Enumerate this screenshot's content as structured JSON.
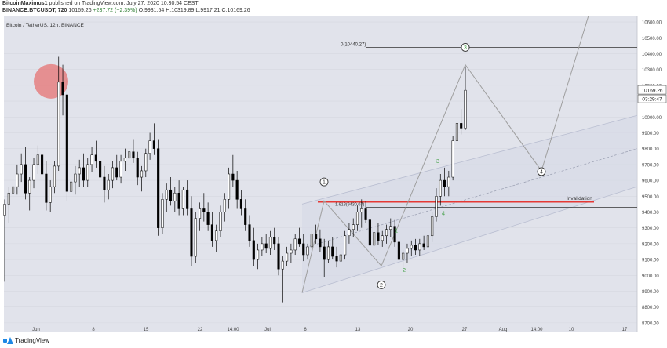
{
  "header": {
    "author": "BitcoinMaximus1",
    "published": "published on TradingView.com, July 27, 2020 10:30:54 CEST",
    "symbol": "BINANCE:BTCUSDT, 720",
    "price": "10169.26",
    "change": "+237.72 (+2.39%)",
    "ohlc": "O:9931.54 H:10319.89 L:9917.21 C:10169.26"
  },
  "footer": {
    "brand": "TradingView"
  },
  "chart_data": {
    "type": "candlestick",
    "title": "Bitcoin / TetherUS, 12h, BINANCE",
    "ylim": [
      8640,
      10640
    ],
    "y_ticks": [
      "10600.00",
      "10500.00",
      "10400.00",
      "10300.00",
      "10200.00",
      "10100.00",
      "10000.00",
      "9900.00",
      "9800.00",
      "9700.00",
      "9600.00",
      "9500.00",
      "9400.00",
      "9300.00",
      "9200.00",
      "9100.00",
      "9000.00",
      "8900.00",
      "8800.00",
      "8700.00"
    ],
    "x_ticks": [
      "Jun",
      "8",
      "15",
      "22",
      "14:00",
      "Jul",
      "6",
      "13",
      "20",
      "27",
      "Aug",
      "14:00",
      "10",
      "17"
    ],
    "price_badge": "10169.26",
    "countdown_badge": "03:29:47",
    "candles": [
      [
        9380,
        9480,
        8960,
        9450
      ],
      [
        9450,
        9560,
        9330,
        9520
      ],
      [
        9520,
        9620,
        9430,
        9560
      ],
      [
        9560,
        9700,
        9510,
        9640
      ],
      [
        9640,
        9770,
        9590,
        9700
      ],
      [
        9700,
        9810,
        9480,
        9520
      ],
      [
        9520,
        9620,
        9410,
        9600
      ],
      [
        9600,
        9740,
        9550,
        9700
      ],
      [
        9700,
        9820,
        9640,
        9760
      ],
      [
        9760,
        9880,
        9590,
        9640
      ],
      [
        9640,
        9720,
        9410,
        9460
      ],
      [
        9460,
        9600,
        9400,
        9560
      ],
      [
        9560,
        9720,
        9520,
        9690
      ],
      [
        9690,
        10380,
        9660,
        10220
      ],
      [
        10220,
        10330,
        10010,
        10140
      ],
      [
        10140,
        10240,
        9470,
        9530
      ],
      [
        9530,
        9640,
        9360,
        9590
      ],
      [
        9590,
        9690,
        9510,
        9640
      ],
      [
        9640,
        9730,
        9560,
        9680
      ],
      [
        9680,
        9770,
        9560,
        9600
      ],
      [
        9600,
        9740,
        9560,
        9700
      ],
      [
        9700,
        9810,
        9650,
        9760
      ],
      [
        9760,
        9850,
        9680,
        9720
      ],
      [
        9720,
        9800,
        9580,
        9620
      ],
      [
        9620,
        9690,
        9460,
        9540
      ],
      [
        9540,
        9640,
        9480,
        9600
      ],
      [
        9600,
        9720,
        9550,
        9680
      ],
      [
        9680,
        9760,
        9600,
        9620
      ],
      [
        9620,
        9760,
        9580,
        9720
      ],
      [
        9720,
        9800,
        9660,
        9740
      ],
      [
        9740,
        9830,
        9690,
        9780
      ],
      [
        9780,
        9860,
        9710,
        9740
      ],
      [
        9740,
        9780,
        9570,
        9620
      ],
      [
        9620,
        9690,
        9530,
        9660
      ],
      [
        9660,
        9800,
        9620,
        9770
      ],
      [
        9770,
        9900,
        9730,
        9850
      ],
      [
        9850,
        9960,
        9760,
        9800
      ],
      [
        9800,
        9860,
        9250,
        9300
      ],
      [
        9300,
        9520,
        9260,
        9480
      ],
      [
        9480,
        9580,
        9400,
        9540
      ],
      [
        9540,
        9620,
        9440,
        9470
      ],
      [
        9470,
        9560,
        9400,
        9520
      ],
      [
        9520,
        9600,
        9380,
        9420
      ],
      [
        9420,
        9560,
        9380,
        9540
      ],
      [
        9540,
        9600,
        9380,
        9420
      ],
      [
        9420,
        9500,
        9060,
        9120
      ],
      [
        9120,
        9400,
        9080,
        9360
      ],
      [
        9360,
        9460,
        9280,
        9420
      ],
      [
        9420,
        9520,
        9340,
        9400
      ],
      [
        9400,
        9460,
        9280,
        9320
      ],
      [
        9320,
        9400,
        9180,
        9220
      ],
      [
        9220,
        9320,
        9150,
        9280
      ],
      [
        9280,
        9440,
        9240,
        9400
      ],
      [
        9400,
        9520,
        9340,
        9480
      ],
      [
        9480,
        9680,
        9420,
        9640
      ],
      [
        9640,
        9760,
        9560,
        9600
      ],
      [
        9600,
        9660,
        9420,
        9480
      ],
      [
        9480,
        9540,
        9380,
        9420
      ],
      [
        9420,
        9480,
        9280,
        9320
      ],
      [
        9320,
        9380,
        9180,
        9220
      ],
      [
        9220,
        9300,
        9060,
        9100
      ],
      [
        9100,
        9200,
        9040,
        9160
      ],
      [
        9160,
        9240,
        9120,
        9200
      ],
      [
        9200,
        9260,
        9140,
        9170
      ],
      [
        9170,
        9280,
        9130,
        9240
      ],
      [
        9240,
        9300,
        9160,
        9200
      ],
      [
        9200,
        9240,
        9000,
        9040
      ],
      [
        9040,
        9120,
        8830,
        9090
      ],
      [
        9090,
        9180,
        9060,
        9140
      ],
      [
        9140,
        9200,
        9080,
        9160
      ],
      [
        9160,
        9260,
        9130,
        9230
      ],
      [
        9230,
        9300,
        9180,
        9200
      ],
      [
        9200,
        9260,
        9090,
        9130
      ],
      [
        9130,
        9200,
        9100,
        9180
      ],
      [
        9180,
        9280,
        9140,
        9260
      ],
      [
        9260,
        9320,
        9200,
        9230
      ],
      [
        9230,
        9290,
        9150,
        9180
      ],
      [
        9180,
        9230,
        8990,
        9100
      ],
      [
        9100,
        9220,
        9080,
        9180
      ],
      [
        9180,
        9240,
        9100,
        9120
      ],
      [
        9120,
        9180,
        9050,
        9090
      ],
      [
        9090,
        9160,
        8900,
        9130
      ],
      [
        9130,
        9280,
        9100,
        9250
      ],
      [
        9250,
        9330,
        9200,
        9290
      ],
      [
        9290,
        9360,
        9240,
        9320
      ],
      [
        9320,
        9440,
        9280,
        9400
      ],
      [
        9400,
        9480,
        9300,
        9420
      ],
      [
        9420,
        9470,
        9330,
        9350
      ],
      [
        9350,
        9380,
        9150,
        9190
      ],
      [
        9190,
        9300,
        9140,
        9270
      ],
      [
        9270,
        9330,
        9190,
        9220
      ],
      [
        9220,
        9280,
        9180,
        9250
      ],
      [
        9250,
        9320,
        9200,
        9290
      ],
      [
        9290,
        9360,
        9240,
        9310
      ],
      [
        9310,
        9350,
        9180,
        9210
      ],
      [
        9210,
        9240,
        9060,
        9100
      ],
      [
        9100,
        9160,
        9040,
        9140
      ],
      [
        9140,
        9200,
        9080,
        9170
      ],
      [
        9170,
        9220,
        9120,
        9190
      ],
      [
        9190,
        9230,
        9130,
        9160
      ],
      [
        9160,
        9230,
        9120,
        9200
      ],
      [
        9200,
        9250,
        9160,
        9180
      ],
      [
        9180,
        9270,
        9150,
        9250
      ],
      [
        9250,
        9400,
        9210,
        9370
      ],
      [
        9370,
        9550,
        9340,
        9500
      ],
      [
        9500,
        9640,
        9440,
        9600
      ],
      [
        9600,
        9680,
        9500,
        9560
      ],
      [
        9560,
        9660,
        9500,
        9620
      ],
      [
        9620,
        9880,
        9600,
        9850
      ],
      [
        9850,
        10000,
        9800,
        9960
      ],
      [
        9960,
        10050,
        9890,
        9930
      ],
      [
        9930,
        10320,
        9917,
        10169
      ]
    ],
    "annotations": {
      "fib_0": "0(10440.27)",
      "fib_1618": "1.618(9430.07)",
      "invalidation": "Invalidation",
      "waves_circled": [
        "1",
        "2",
        "3",
        "4"
      ],
      "waves_sub": [
        "1",
        "2",
        "3",
        "4"
      ]
    },
    "colors": {
      "bull": "#ffffff",
      "bear": "#000000",
      "invalidation": "#e53935",
      "channel": "#b8bdd0",
      "wave": "#9e9e9e",
      "sub": "#43a047",
      "plot_bg": "#e1e3eb",
      "top_circle": "#e57373"
    }
  }
}
